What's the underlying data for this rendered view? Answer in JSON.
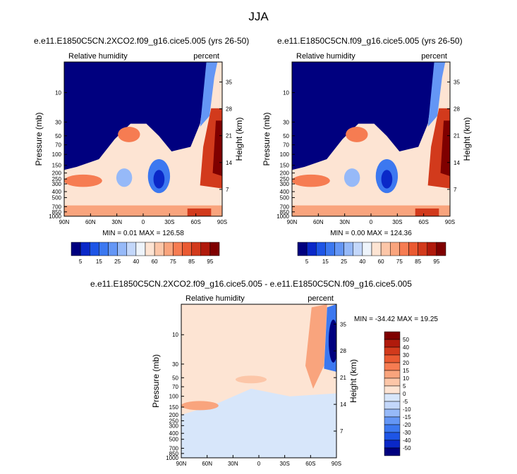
{
  "page": {
    "title": "JJA"
  },
  "colors": {
    "rh_scale": [
      "#00007f",
      "#0a28c8",
      "#1e55e6",
      "#3c78f0",
      "#6496f5",
      "#96b9f8",
      "#c3d7fa",
      "#eef4fb",
      "#fde4d3",
      "#fcc6a8",
      "#f9a47d",
      "#f67c52",
      "#ea5a32",
      "#d23a1c",
      "#b01a0c",
      "#7f0000"
    ],
    "diff_scale": [
      "#00007f",
      "#0a28c8",
      "#1e55e6",
      "#3c78f0",
      "#6496f5",
      "#96b9f8",
      "#c3d7fa",
      "#d7e6fa",
      "#fde4d3",
      "#fcc6a8",
      "#f9a47d",
      "#f67c52",
      "#ea5a32",
      "#d23a1c",
      "#b01a0c",
      "#7f0000"
    ]
  },
  "chart_data": [
    {
      "type": "heatmap",
      "title": "e.e11.E1850C5CN.2XCO2.f09_g16.cice5.005 (yrs 26-50)",
      "variable_label": "Relative humidity",
      "units_label": "percent",
      "ylabel": "Pressure (mb)",
      "ylabel_right": "Height (km)",
      "x_ticks": [
        "90N",
        "60N",
        "30N",
        "0",
        "30S",
        "60S",
        "90S"
      ],
      "y_ticks": [
        "10",
        "30",
        "50",
        "70",
        "100",
        "150",
        "200",
        "250",
        "300",
        "400",
        "500",
        "700",
        "850",
        "1000"
      ],
      "y_ticks_right": [
        "35",
        "28",
        "21",
        "14",
        "7"
      ],
      "stats_text": "MIN =   0.01   MAX = 126.58",
      "min": 0.01,
      "max": 126.58,
      "colorbar_labels": [
        "5",
        "15",
        "25",
        "40",
        "60",
        "75",
        "85",
        "95"
      ]
    },
    {
      "type": "heatmap",
      "title": "e.e11.E1850C5CN.f09_g16.cice5.005 (yrs 26-50)",
      "variable_label": "Relative humidity",
      "units_label": "percent",
      "ylabel": "Pressure (mb)",
      "ylabel_right": "Height (km)",
      "x_ticks": [
        "90N",
        "60N",
        "30N",
        "0",
        "30S",
        "60S",
        "90S"
      ],
      "y_ticks": [
        "10",
        "30",
        "50",
        "70",
        "100",
        "150",
        "200",
        "250",
        "300",
        "400",
        "500",
        "700",
        "850",
        "1000"
      ],
      "y_ticks_right": [
        "35",
        "28",
        "21",
        "14",
        "7"
      ],
      "stats_text": "MIN =   0.00   MAX = 124.36",
      "min": 0.0,
      "max": 124.36,
      "colorbar_labels": [
        "5",
        "15",
        "25",
        "40",
        "60",
        "75",
        "85",
        "95"
      ]
    },
    {
      "type": "heatmap",
      "title": "e.e11.E1850C5CN.2XCO2.f09_g16.cice5.005 - e.e11.E1850C5CN.f09_g16.cice5.005",
      "variable_label": "Relative humidity",
      "units_label": "percent",
      "ylabel": "Pressure (mb)",
      "ylabel_right": "Height (km)",
      "x_ticks": [
        "90N",
        "60N",
        "30N",
        "0",
        "30S",
        "60S",
        "90S"
      ],
      "y_ticks": [
        "10",
        "30",
        "50",
        "70",
        "100",
        "150",
        "200",
        "250",
        "300",
        "400",
        "500",
        "700",
        "850",
        "1000"
      ],
      "y_ticks_right": [
        "35",
        "28",
        "21",
        "14",
        "7"
      ],
      "stats_text": "MIN = -34.42   MAX =  19.25",
      "min": -34.42,
      "max": 19.25,
      "colorbar_labels": [
        "50",
        "40",
        "30",
        "20",
        "15",
        "10",
        "5",
        "0",
        "-5",
        "-10",
        "-15",
        "-20",
        "-30",
        "-40",
        "-50"
      ]
    }
  ]
}
